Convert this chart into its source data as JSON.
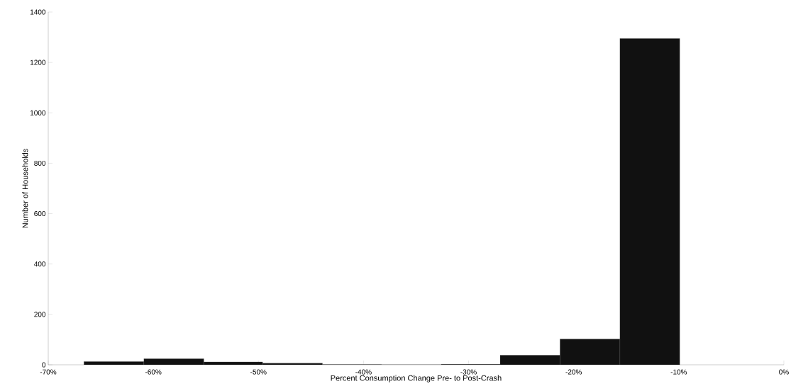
{
  "chart_data": {
    "type": "histogram",
    "xlabel": "Percent Consumption Change Pre- to Post-Crash",
    "ylabel": "Number of Households",
    "bins": [
      -66.6,
      -60.9,
      -55.2,
      -49.6,
      -43.9,
      -38.3,
      -32.6,
      -27.0,
      -21.3,
      -15.6,
      -9.9
    ],
    "values": [
      13,
      24,
      11,
      6,
      1,
      0,
      2,
      38,
      102,
      1295
    ],
    "color": "#111111",
    "xlim": [
      -70,
      0
    ],
    "ylim": [
      0,
      1400
    ],
    "xticks": [
      {
        "value": -70,
        "label": "-70%"
      },
      {
        "value": -60,
        "label": "-60%"
      },
      {
        "value": -50,
        "label": "-50%"
      },
      {
        "value": -40,
        "label": "-40%"
      },
      {
        "value": -30,
        "label": "-30%"
      },
      {
        "value": -20,
        "label": "-20%"
      },
      {
        "value": -10,
        "label": "-10%"
      },
      {
        "value": 0,
        "label": "0%"
      }
    ],
    "yticks": [
      0,
      200,
      400,
      600,
      800,
      1000,
      1200,
      1400
    ],
    "grid": false
  }
}
